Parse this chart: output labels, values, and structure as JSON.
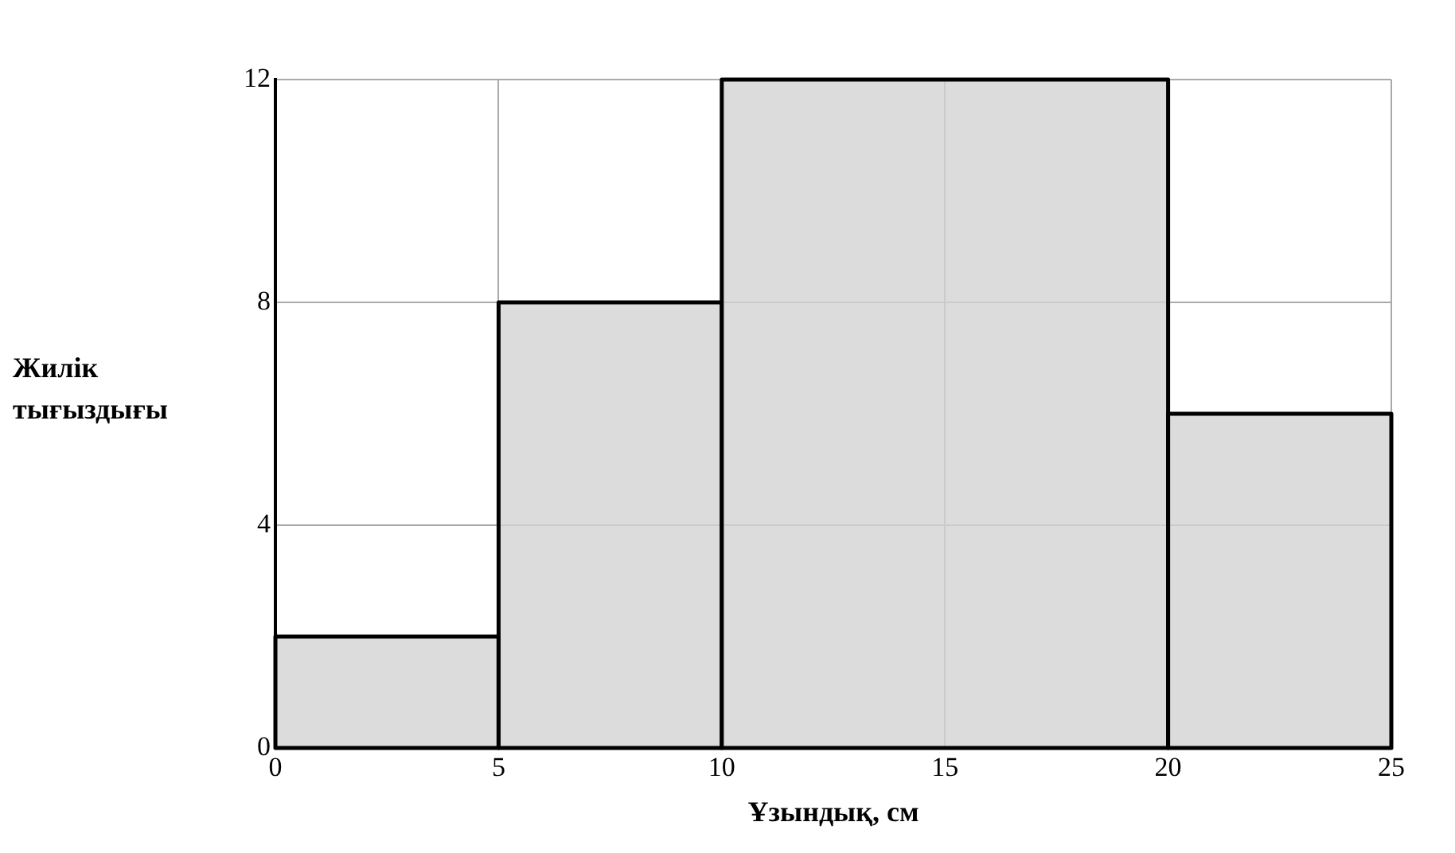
{
  "chart_data": {
    "type": "histogram",
    "xlabel": "Ұзындық, см",
    "ylabel": "Жилік тығыздығы",
    "bins": [
      0,
      5,
      10,
      20,
      25
    ],
    "values": [
      2,
      8,
      12,
      6
    ],
    "color": "#d3d3d3",
    "xlim": [
      0,
      25
    ],
    "ylim": [
      0,
      12
    ],
    "xticks": [
      0,
      5,
      10,
      15,
      20,
      25
    ],
    "yticks": [
      0,
      4,
      8,
      12
    ],
    "grid": true
  }
}
